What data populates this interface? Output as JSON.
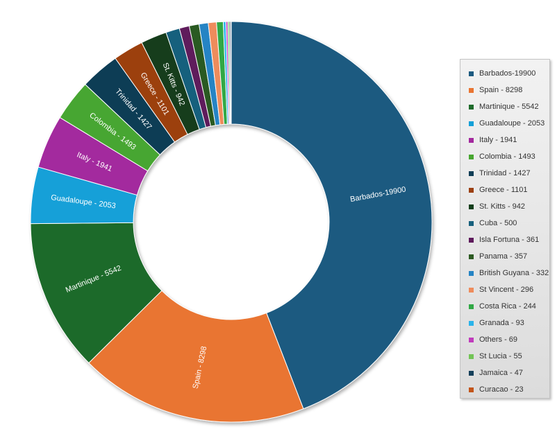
{
  "chart_data": {
    "type": "pie",
    "donut": true,
    "legend_position": "right",
    "slices": [
      {
        "name": "Barbados",
        "value": 19900,
        "slice_label": "Barbados-19900",
        "legend_label": "Barbados-19900",
        "color": "#1c5a80"
      },
      {
        "name": "Spain",
        "value": 8298,
        "slice_label": "Spain - 8298",
        "legend_label": "Spain - 8298",
        "color": "#e97532"
      },
      {
        "name": "Martinique",
        "value": 5542,
        "slice_label": "Martinique - 5542",
        "legend_label": "Martinique - 5542",
        "color": "#1f6b2b"
      },
      {
        "name": "Guadaloupe",
        "value": 2053,
        "slice_label": "Guadaloupe - 2053",
        "legend_label": "Guadaloupe - 2053",
        "color": "#14a0d8"
      },
      {
        "name": "Italy",
        "value": 1941,
        "slice_label": "Italy - 1941",
        "legend_label": "Italy - 1941",
        "color": "#a3299e"
      },
      {
        "name": "Colombia",
        "value": 1493,
        "slice_label": "Colombia - 1493",
        "legend_label": "Colombia - 1493",
        "color": "#47a630"
      },
      {
        "name": "Trinidad",
        "value": 1427,
        "slice_label": "Trinidad - 1427",
        "legend_label": "Trinidad - 1427",
        "color": "#0f3d55"
      },
      {
        "name": "Greece",
        "value": 1101,
        "slice_label": "Greece - 1101",
        "legend_label": "Greece - 1101",
        "color": "#9c4011"
      },
      {
        "name": "St. Kitts",
        "value": 942,
        "slice_label": "St. Kitts - 942",
        "legend_label": "St. Kitts - 942",
        "color": "#123e1b"
      },
      {
        "name": "Cuba",
        "value": 500,
        "slice_label": "",
        "legend_label": "Cuba - 500",
        "color": "#17607d"
      },
      {
        "name": "Isla Fortuna",
        "value": 361,
        "slice_label": "",
        "legend_label": "Isla Fortuna - 361",
        "color": "#5e1a5c"
      },
      {
        "name": "Panama",
        "value": 357,
        "slice_label": "",
        "legend_label": "Panama - 357",
        "color": "#2c5a22"
      },
      {
        "name": "British Guyana",
        "value": 332,
        "slice_label": "",
        "legend_label": "British Guyana - 332",
        "color": "#2584c4"
      },
      {
        "name": "St Vincent",
        "value": 296,
        "slice_label": "",
        "legend_label": "St Vincent - 296",
        "color": "#ee8c5c"
      },
      {
        "name": "Costa Rica",
        "value": 244,
        "slice_label": "",
        "legend_label": "Costa Rica - 244",
        "color": "#31a845"
      },
      {
        "name": "Granada",
        "value": 93,
        "slice_label": "",
        "legend_label": "Granada - 93",
        "color": "#2ab3ea"
      },
      {
        "name": "Others",
        "value": 69,
        "slice_label": "",
        "legend_label": "Others - 69",
        "color": "#c03cbc"
      },
      {
        "name": "St Lucia",
        "value": 55,
        "slice_label": "",
        "legend_label": "St Lucia - 55",
        "color": "#72c456"
      },
      {
        "name": "Jamaica",
        "value": 47,
        "slice_label": "",
        "legend_label": "Jamaica - 47",
        "color": "#14405a"
      },
      {
        "name": "Curacao",
        "value": 23,
        "slice_label": "",
        "legend_label": "Curacao - 23",
        "color": "#c3551a"
      }
    ]
  }
}
